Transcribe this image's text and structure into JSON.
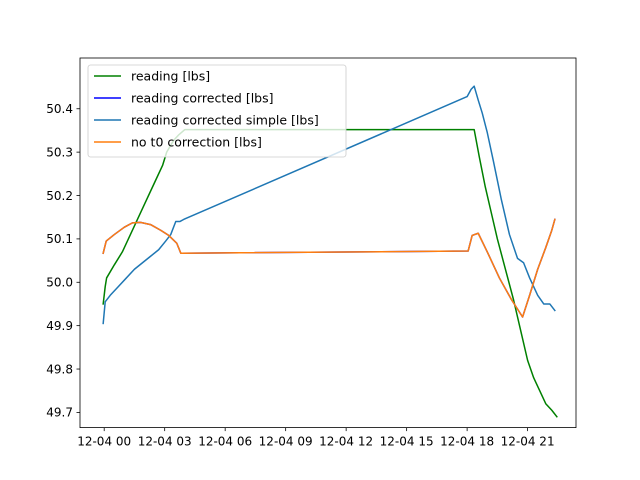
{
  "chart_data": {
    "type": "line",
    "title": "",
    "xlabel": "",
    "ylabel": "",
    "xlim": [
      -1.2,
      23.4
    ],
    "ylim": [
      49.665,
      50.517
    ],
    "x_ticks": [
      {
        "x": 0,
        "label": "12-04 00"
      },
      {
        "x": 3,
        "label": "12-04 03"
      },
      {
        "x": 6,
        "label": "12-04 06"
      },
      {
        "x": 9,
        "label": "12-04 09"
      },
      {
        "x": 12,
        "label": "12-04 12"
      },
      {
        "x": 15,
        "label": "12-04 15"
      },
      {
        "x": 18,
        "label": "12-04 18"
      },
      {
        "x": 21,
        "label": "12-04 21"
      }
    ],
    "y_ticks": [
      {
        "y": 49.7,
        "label": "49.7"
      },
      {
        "y": 49.8,
        "label": "49.8"
      },
      {
        "y": 49.9,
        "label": "49.9"
      },
      {
        "y": 50.0,
        "label": "50.0"
      },
      {
        "y": 50.1,
        "label": "50.1"
      },
      {
        "y": 50.2,
        "label": "50.2"
      },
      {
        "y": 50.3,
        "label": "50.3"
      },
      {
        "y": 50.4,
        "label": "50.4"
      }
    ],
    "legend_position": "upper-left",
    "series": [
      {
        "name": "reading [lbs]",
        "color": "#008000",
        "points": [
          [
            -0.05,
            49.95
          ],
          [
            0.05,
            49.99
          ],
          [
            0.12,
            50.01
          ],
          [
            0.5,
            50.04
          ],
          [
            0.9,
            50.07
          ],
          [
            1.3,
            50.11
          ],
          [
            1.7,
            50.15
          ],
          [
            2.1,
            50.19
          ],
          [
            2.5,
            50.23
          ],
          [
            2.9,
            50.27
          ],
          [
            3.1,
            50.3
          ],
          [
            3.35,
            50.32
          ],
          [
            3.5,
            50.33
          ],
          [
            3.7,
            50.34
          ],
          [
            4.0,
            50.352
          ],
          [
            18.35,
            50.352
          ],
          [
            18.6,
            50.29
          ],
          [
            18.9,
            50.22
          ],
          [
            19.2,
            50.16
          ],
          [
            19.5,
            50.1
          ],
          [
            19.9,
            50.03
          ],
          [
            20.3,
            49.96
          ],
          [
            20.7,
            49.88
          ],
          [
            21.0,
            49.82
          ],
          [
            21.3,
            49.78
          ],
          [
            21.6,
            49.75
          ],
          [
            21.9,
            49.72
          ],
          [
            22.2,
            49.705
          ],
          [
            22.45,
            49.69
          ]
        ]
      },
      {
        "name": "reading corrected [lbs]",
        "color": "#0000ff",
        "points": [
          [
            -0.05,
            50.067
          ],
          [
            0.1,
            50.095
          ],
          [
            0.5,
            50.11
          ],
          [
            1.0,
            50.127
          ],
          [
            1.4,
            50.137
          ],
          [
            1.8,
            50.138
          ],
          [
            2.3,
            50.133
          ],
          [
            2.8,
            50.12
          ],
          [
            3.2,
            50.108
          ],
          [
            3.6,
            50.09
          ],
          [
            3.8,
            50.067
          ],
          [
            18.05,
            50.072
          ],
          [
            18.25,
            50.108
          ],
          [
            18.55,
            50.113
          ],
          [
            19.0,
            50.07
          ],
          [
            19.6,
            50.01
          ],
          [
            20.2,
            49.96
          ],
          [
            20.75,
            49.92
          ],
          [
            21.1,
            49.97
          ],
          [
            21.5,
            50.03
          ],
          [
            21.9,
            50.08
          ],
          [
            22.2,
            50.12
          ],
          [
            22.35,
            50.145
          ]
        ]
      },
      {
        "name": "reading corrected simple [lbs]",
        "color": "#1f77b4",
        "points": [
          [
            -0.05,
            49.905
          ],
          [
            0.05,
            49.955
          ],
          [
            0.3,
            49.97
          ],
          [
            0.7,
            49.99
          ],
          [
            1.1,
            50.01
          ],
          [
            1.5,
            50.03
          ],
          [
            1.9,
            50.045
          ],
          [
            2.3,
            50.06
          ],
          [
            2.7,
            50.075
          ],
          [
            3.05,
            50.095
          ],
          [
            3.3,
            50.11
          ],
          [
            3.55,
            50.14
          ],
          [
            3.75,
            50.14
          ],
          [
            3.95,
            50.145
          ],
          [
            18.0,
            50.428
          ],
          [
            18.2,
            50.445
          ],
          [
            18.35,
            50.452
          ],
          [
            18.55,
            50.42
          ],
          [
            18.75,
            50.39
          ],
          [
            19.0,
            50.345
          ],
          [
            19.3,
            50.28
          ],
          [
            19.7,
            50.19
          ],
          [
            20.1,
            50.11
          ],
          [
            20.5,
            50.055
          ],
          [
            20.8,
            50.045
          ],
          [
            21.1,
            50.01
          ],
          [
            21.5,
            49.97
          ],
          [
            21.8,
            49.95
          ],
          [
            22.1,
            49.95
          ],
          [
            22.35,
            49.935
          ]
        ]
      },
      {
        "name": "no t0 correction [lbs]",
        "color": "#ff7f0e",
        "points": [
          [
            -0.05,
            50.067
          ],
          [
            0.1,
            50.095
          ],
          [
            0.5,
            50.11
          ],
          [
            1.0,
            50.127
          ],
          [
            1.4,
            50.137
          ],
          [
            1.8,
            50.138
          ],
          [
            2.3,
            50.133
          ],
          [
            2.8,
            50.12
          ],
          [
            3.2,
            50.108
          ],
          [
            3.6,
            50.09
          ],
          [
            3.8,
            50.067
          ],
          [
            18.05,
            50.072
          ],
          [
            18.25,
            50.108
          ],
          [
            18.55,
            50.113
          ],
          [
            19.0,
            50.07
          ],
          [
            19.6,
            50.01
          ],
          [
            20.2,
            49.96
          ],
          [
            20.75,
            49.92
          ],
          [
            21.1,
            49.97
          ],
          [
            21.5,
            50.03
          ],
          [
            21.9,
            50.08
          ],
          [
            22.2,
            50.12
          ],
          [
            22.35,
            50.145
          ]
        ]
      }
    ]
  }
}
